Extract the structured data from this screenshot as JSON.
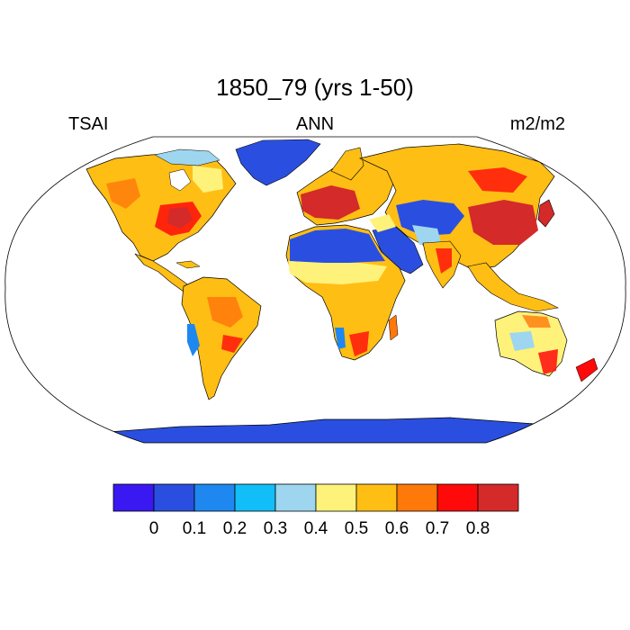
{
  "map": {
    "title": "1850_79 (yrs 1-50)",
    "left_label": "TSAI",
    "center_label": "ANN",
    "right_label": "m2/m2",
    "projection": "Robinson",
    "ocean_color": "#ffffff"
  },
  "colorbar": {
    "colors": [
      "#3a18f2",
      "#2a4fe0",
      "#1e88f0",
      "#12bef8",
      "#9ed6f0",
      "#fff27a",
      "#ffbe14",
      "#ff780a",
      "#ff0a0a",
      "#d42a2a"
    ],
    "tick_labels": [
      "0",
      "0.1",
      "0.2",
      "0.3",
      "0.4",
      "0.5",
      "0.6",
      "0.7",
      "0.8"
    ]
  }
}
